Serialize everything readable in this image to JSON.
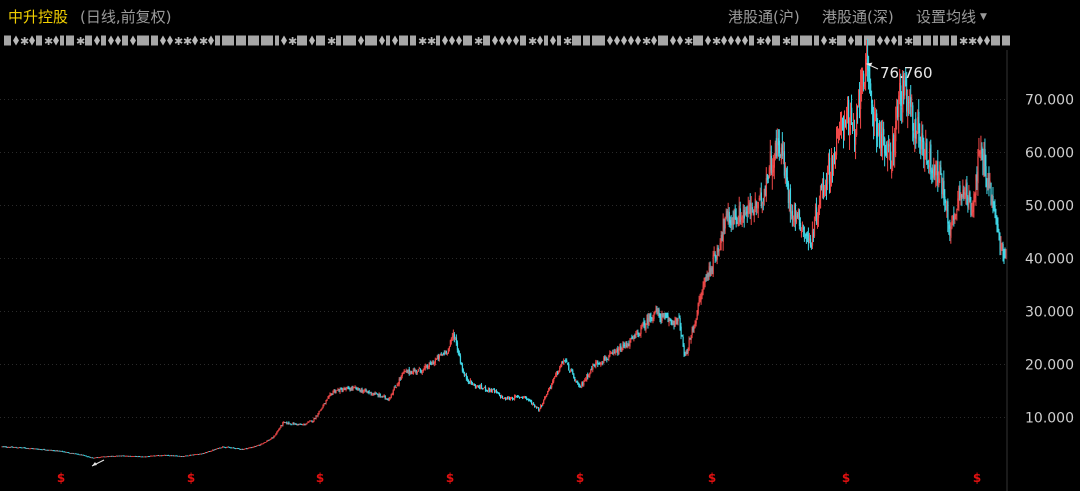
{
  "header": {
    "stock_name": "中升控股",
    "subtitle": "(日线,前复权)",
    "buttons": {
      "hgt_sh": "港股通(沪)",
      "hgt_sz": "港股通(深)",
      "ma_settings": "设置均线"
    }
  },
  "colors": {
    "up": "#f04848",
    "down": "#3fd8e8",
    "grid": "#2a2a2a",
    "axis_text": "#cfcfcf",
    "title": "#f2d000",
    "dividend_marker": "#e01010"
  },
  "chart_data": {
    "type": "candlestick",
    "title": "",
    "ylim": [
      3,
      78
    ],
    "yticks": [
      "10.000",
      "20.000",
      "30.000",
      "40.000",
      "50.000",
      "60.000",
      "70.000"
    ],
    "grid": "horizontal-dotted",
    "peak_label": "76.760",
    "dividend_marker": "$",
    "dividend_marker_count": 8,
    "price_path": [
      [
        0,
        4.5
      ],
      [
        0.02,
        4.3
      ],
      [
        0.04,
        4.0
      ],
      [
        0.06,
        3.6
      ],
      [
        0.08,
        2.9
      ],
      [
        0.09,
        2.4
      ],
      [
        0.1,
        2.6
      ],
      [
        0.12,
        2.8
      ],
      [
        0.14,
        2.6
      ],
      [
        0.16,
        2.9
      ],
      [
        0.18,
        2.7
      ],
      [
        0.19,
        3.0
      ],
      [
        0.2,
        3.2
      ],
      [
        0.22,
        4.5
      ],
      [
        0.24,
        4.0
      ],
      [
        0.255,
        4.7
      ],
      [
        0.27,
        6.2
      ],
      [
        0.28,
        9.0
      ],
      [
        0.3,
        8.6
      ],
      [
        0.31,
        9.5
      ],
      [
        0.33,
        15.0
      ],
      [
        0.35,
        15.5
      ],
      [
        0.37,
        14.5
      ],
      [
        0.385,
        13.5
      ],
      [
        0.4,
        18.5
      ],
      [
        0.42,
        19.0
      ],
      [
        0.43,
        20.5
      ],
      [
        0.445,
        23.0
      ],
      [
        0.45,
        26.0
      ],
      [
        0.46,
        18.0
      ],
      [
        0.47,
        16.0
      ],
      [
        0.49,
        15.0
      ],
      [
        0.5,
        13.5
      ],
      [
        0.52,
        14.0
      ],
      [
        0.535,
        11.5
      ],
      [
        0.545,
        15.5
      ],
      [
        0.56,
        21.0
      ],
      [
        0.575,
        15.5
      ],
      [
        0.59,
        20.0
      ],
      [
        0.61,
        22.0
      ],
      [
        0.63,
        25.0
      ],
      [
        0.65,
        30.0
      ],
      [
        0.66,
        28.5
      ],
      [
        0.675,
        28.0
      ],
      [
        0.68,
        21.0
      ],
      [
        0.69,
        28.0
      ],
      [
        0.7,
        36.0
      ],
      [
        0.71,
        40.0
      ],
      [
        0.72,
        47.0
      ],
      [
        0.74,
        48.5
      ],
      [
        0.755,
        50.0
      ],
      [
        0.765,
        58.0
      ],
      [
        0.775,
        62.0
      ],
      [
        0.785,
        50.0
      ],
      [
        0.795,
        47.0
      ],
      [
        0.805,
        42.5
      ],
      [
        0.815,
        52.0
      ],
      [
        0.83,
        60.0
      ],
      [
        0.84,
        68.0
      ],
      [
        0.85,
        62.0
      ],
      [
        0.855,
        74.0
      ],
      [
        0.858,
        76.76
      ],
      [
        0.865,
        70.0
      ],
      [
        0.875,
        63.0
      ],
      [
        0.885,
        58.0
      ],
      [
        0.895,
        72.0
      ],
      [
        0.91,
        65.0
      ],
      [
        0.925,
        58.0
      ],
      [
        0.935,
        55.0
      ],
      [
        0.945,
        45.0
      ],
      [
        0.955,
        54.0
      ],
      [
        0.965,
        50.0
      ],
      [
        0.975,
        60.0
      ],
      [
        0.985,
        52.0
      ],
      [
        0.995,
        42.0
      ],
      [
        1.0,
        40.0
      ]
    ]
  }
}
